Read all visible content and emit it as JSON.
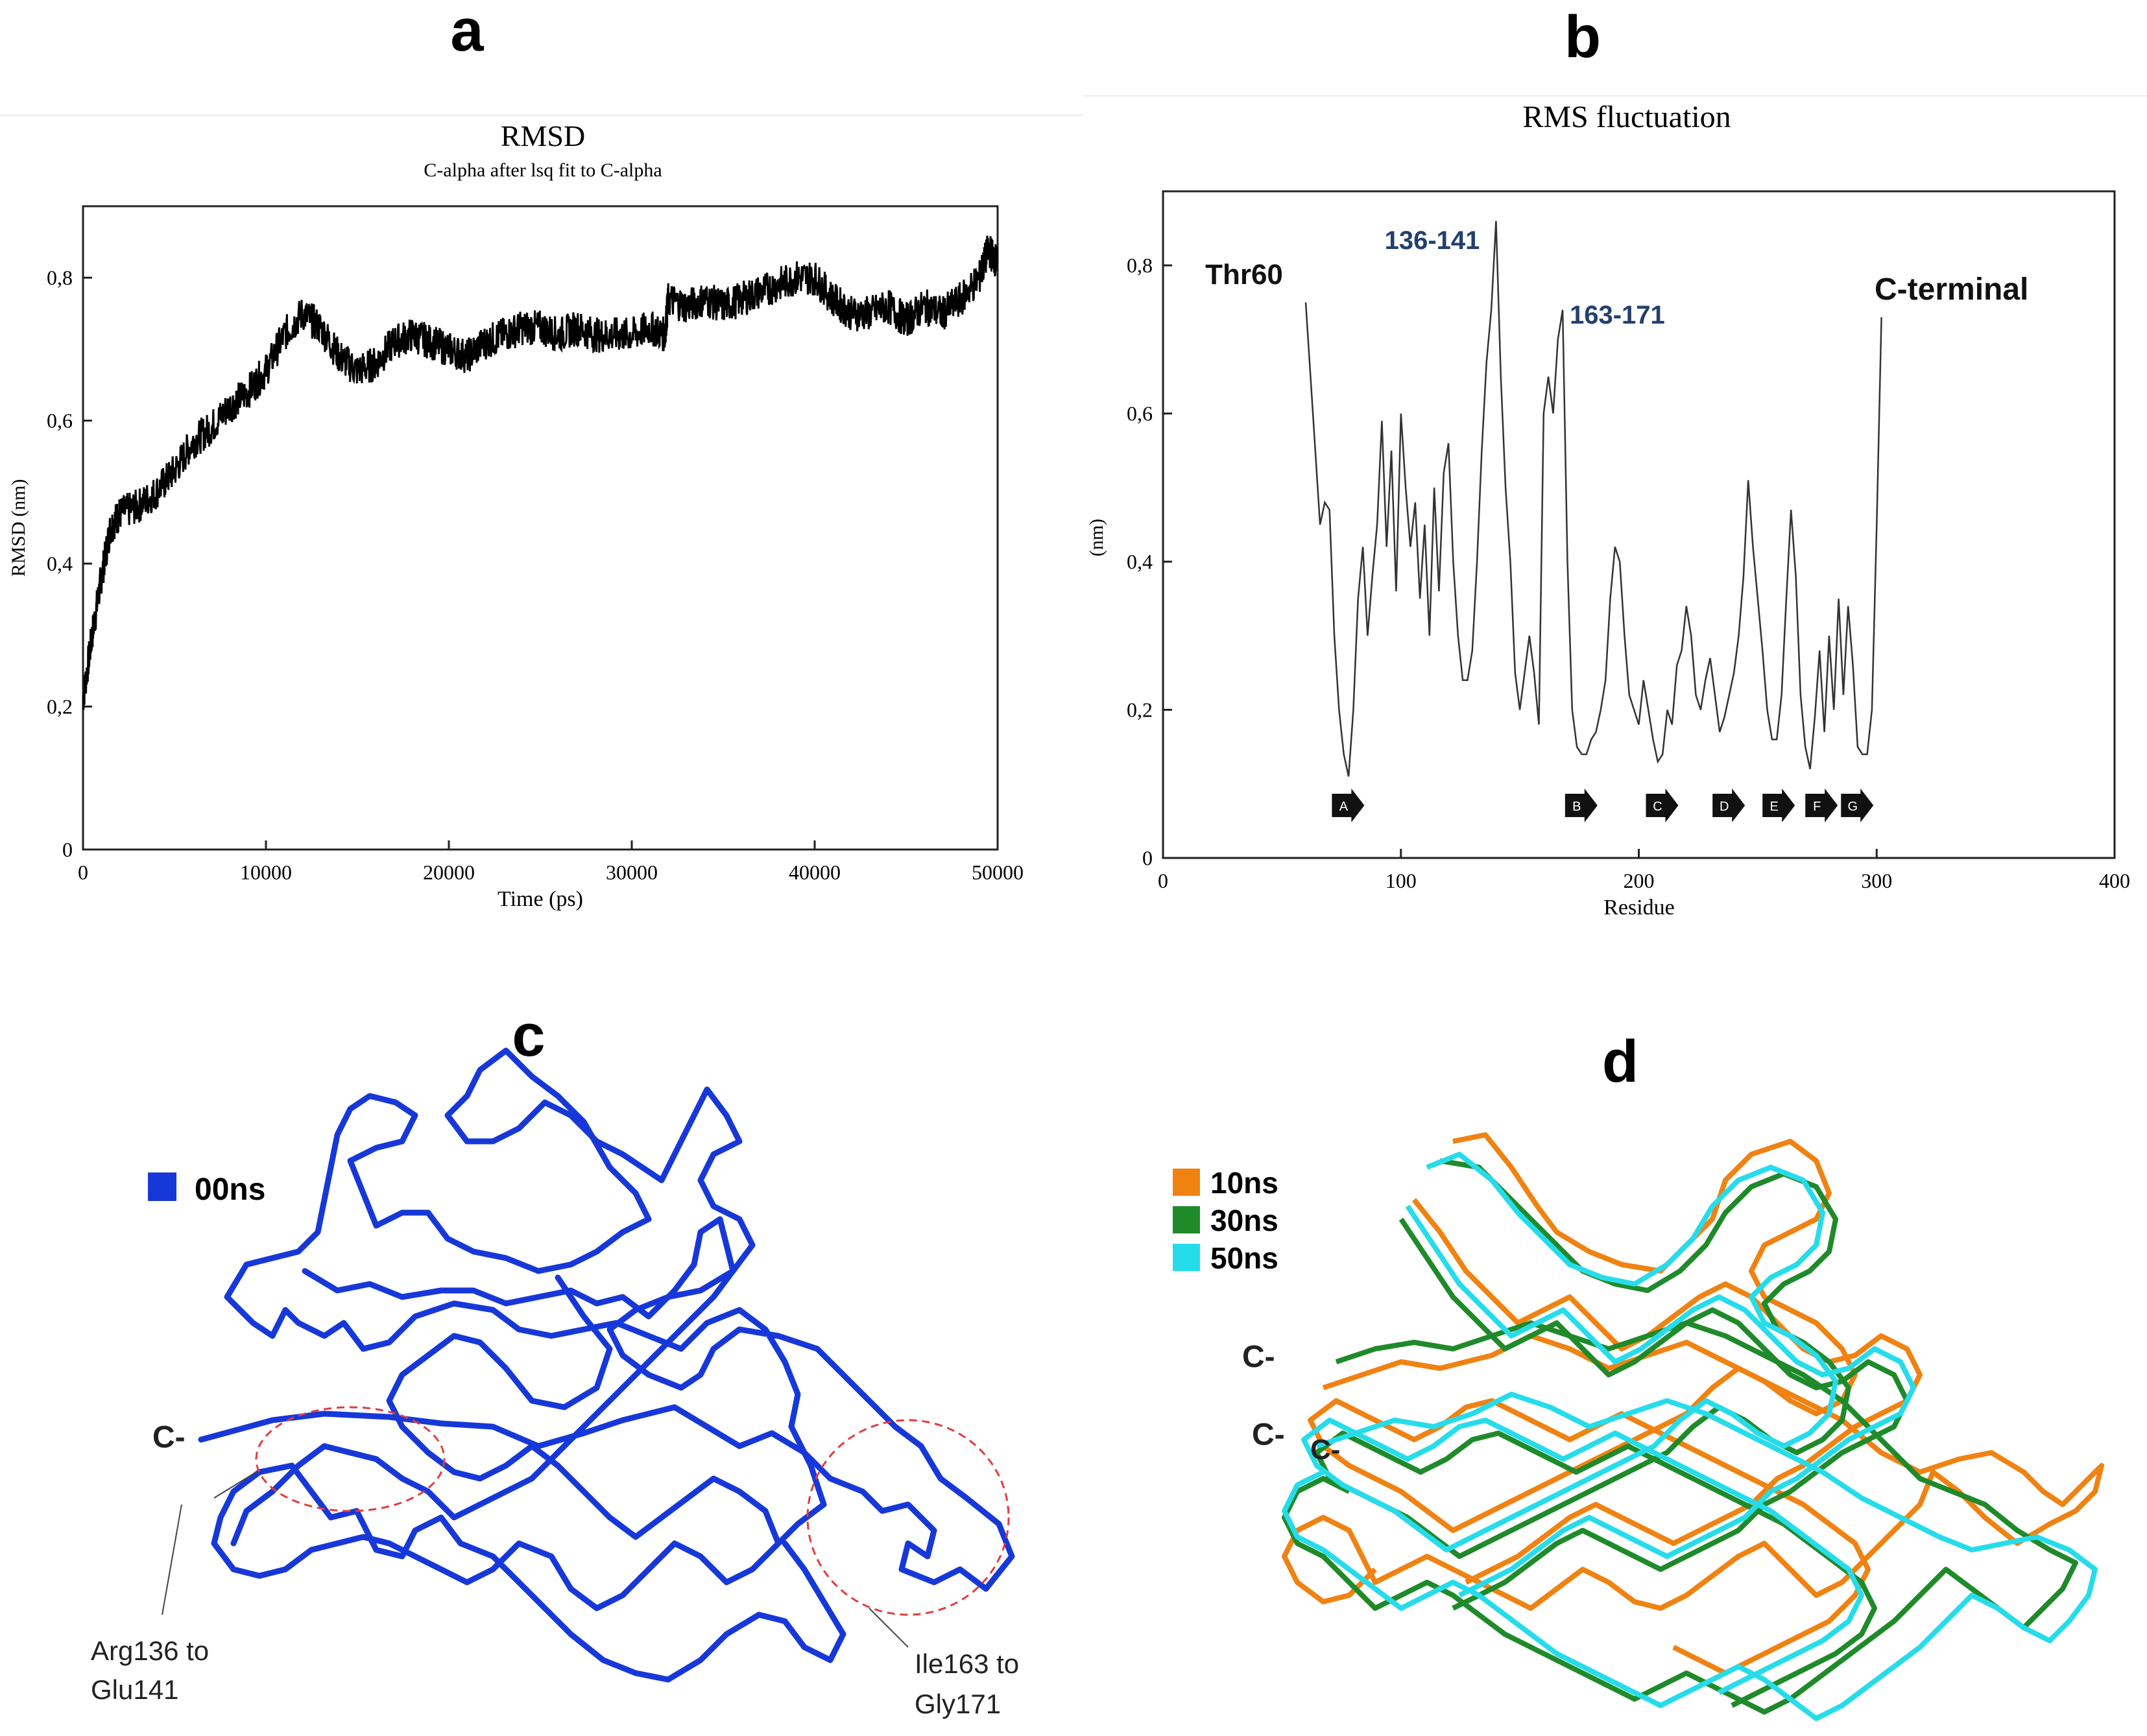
{
  "panels": {
    "a": "a",
    "b": "b",
    "c": "c",
    "d": "d"
  },
  "chart_data": [
    {
      "id": "a",
      "type": "line",
      "title": "RMSD",
      "subtitle": "C-alpha after lsq fit to C-alpha",
      "xlabel": "Time (ps)",
      "ylabel": "RMSD (nm)",
      "xlim": [
        0,
        50000
      ],
      "ylim": [
        0,
        0.9
      ],
      "xticks": [
        0,
        10000,
        20000,
        30000,
        40000,
        50000
      ],
      "xtick_labels": [
        "0",
        "10000",
        "20000",
        "30000",
        "40000",
        "50000"
      ],
      "yticks": [
        0,
        0.2,
        0.4,
        0.6,
        0.8
      ],
      "ytick_labels": [
        "0",
        "0,2",
        "0,4",
        "0,6",
        "0,8"
      ],
      "series": [
        {
          "name": "RMSD",
          "color": "#000000",
          "x": [
            0,
            500,
            1000,
            1500,
            2000,
            3000,
            4000,
            5000,
            6000,
            7000,
            8000,
            9000,
            10000,
            11000,
            12000,
            13000,
            14000,
            15000,
            16000,
            17000,
            18000,
            19000,
            20000,
            21000,
            22000,
            23000,
            24000,
            25000,
            26000,
            27000,
            28000,
            29000,
            30000,
            31000,
            31800,
            32000,
            33000,
            34000,
            35000,
            36000,
            37000,
            38000,
            39000,
            40000,
            41000,
            42000,
            43000,
            44000,
            45000,
            46000,
            47000,
            48000,
            49000,
            49500,
            50000
          ],
          "values": [
            0.21,
            0.3,
            0.38,
            0.45,
            0.47,
            0.48,
            0.5,
            0.53,
            0.57,
            0.59,
            0.62,
            0.64,
            0.67,
            0.72,
            0.75,
            0.73,
            0.69,
            0.67,
            0.68,
            0.71,
            0.72,
            0.71,
            0.7,
            0.69,
            0.71,
            0.72,
            0.73,
            0.73,
            0.72,
            0.73,
            0.72,
            0.72,
            0.72,
            0.73,
            0.72,
            0.77,
            0.76,
            0.77,
            0.76,
            0.77,
            0.78,
            0.79,
            0.8,
            0.8,
            0.77,
            0.75,
            0.75,
            0.76,
            0.74,
            0.76,
            0.75,
            0.77,
            0.8,
            0.84,
            0.82
          ]
        }
      ]
    },
    {
      "id": "b",
      "type": "line",
      "title": "RMS fluctuation",
      "xlabel": "Residue",
      "ylabel": "(nm)",
      "xlim": [
        0,
        400
      ],
      "ylim": [
        0,
        0.9
      ],
      "xticks": [
        0,
        100,
        200,
        300,
        400
      ],
      "xtick_labels": [
        "0",
        "100",
        "200",
        "300",
        "400"
      ],
      "yticks": [
        0,
        0.2,
        0.4,
        0.6,
        0.8
      ],
      "ytick_labels": [
        "0",
        "0,2",
        "0,4",
        "0,6",
        "0,8"
      ],
      "series": [
        {
          "name": "RMSF",
          "color": "#333333",
          "x": [
            60,
            63,
            66,
            68,
            70,
            72,
            74,
            76,
            78,
            80,
            82,
            84,
            86,
            88,
            90,
            92,
            94,
            96,
            98,
            100,
            102,
            104,
            106,
            108,
            110,
            112,
            114,
            116,
            118,
            120,
            122,
            124,
            126,
            128,
            130,
            132,
            134,
            136,
            138,
            140,
            142,
            144,
            146,
            148,
            150,
            152,
            154,
            156,
            158,
            160,
            162,
            164,
            166,
            168,
            170,
            172,
            174,
            176,
            178,
            180,
            182,
            184,
            186,
            188,
            190,
            192,
            194,
            196,
            198,
            200,
            202,
            204,
            206,
            208,
            210,
            212,
            214,
            216,
            218,
            220,
            222,
            224,
            226,
            228,
            230,
            232,
            234,
            236,
            238,
            240,
            242,
            244,
            246,
            248,
            250,
            252,
            254,
            256,
            258,
            260,
            262,
            264,
            266,
            268,
            270,
            272,
            274,
            276,
            278,
            280,
            282,
            284,
            286,
            288,
            290,
            292,
            294,
            296,
            298,
            300,
            302
          ],
          "values": [
            0.75,
            0.6,
            0.45,
            0.48,
            0.47,
            0.3,
            0.2,
            0.14,
            0.11,
            0.2,
            0.35,
            0.42,
            0.3,
            0.38,
            0.45,
            0.59,
            0.42,
            0.55,
            0.36,
            0.6,
            0.5,
            0.42,
            0.48,
            0.35,
            0.45,
            0.3,
            0.5,
            0.36,
            0.52,
            0.56,
            0.4,
            0.3,
            0.24,
            0.24,
            0.28,
            0.4,
            0.55,
            0.67,
            0.74,
            0.86,
            0.65,
            0.5,
            0.4,
            0.25,
            0.2,
            0.25,
            0.3,
            0.25,
            0.18,
            0.6,
            0.65,
            0.6,
            0.7,
            0.74,
            0.4,
            0.2,
            0.15,
            0.14,
            0.14,
            0.16,
            0.17,
            0.2,
            0.24,
            0.35,
            0.42,
            0.4,
            0.3,
            0.22,
            0.2,
            0.18,
            0.24,
            0.2,
            0.16,
            0.13,
            0.14,
            0.2,
            0.18,
            0.26,
            0.28,
            0.34,
            0.3,
            0.22,
            0.2,
            0.24,
            0.27,
            0.22,
            0.17,
            0.19,
            0.22,
            0.25,
            0.3,
            0.38,
            0.51,
            0.42,
            0.35,
            0.28,
            0.2,
            0.16,
            0.16,
            0.22,
            0.35,
            0.47,
            0.38,
            0.22,
            0.15,
            0.12,
            0.19,
            0.28,
            0.17,
            0.3,
            0.2,
            0.35,
            0.22,
            0.34,
            0.26,
            0.15,
            0.14,
            0.14,
            0.2,
            0.45,
            0.73
          ]
        }
      ],
      "annotations": [
        "Thr60",
        "136-141",
        "163-171",
        "C-terminal"
      ],
      "strand_markers": [
        "A",
        "B",
        "C",
        "D",
        "E",
        "F",
        "G"
      ],
      "strand_marker_x": [
        77,
        175,
        209,
        237,
        258,
        276,
        291
      ]
    }
  ],
  "structures": {
    "c": {
      "legend": [
        {
          "label": "00ns",
          "color": "#1738d9"
        }
      ],
      "terminus": "C-",
      "regions": [
        {
          "label_line1": "Arg136 to",
          "label_line2": "Glu141"
        },
        {
          "label_line1": "Ile163 to",
          "label_line2": "Gly171"
        }
      ],
      "ellipse_color": "#e23c3c"
    },
    "d": {
      "legend": [
        {
          "label": "10ns",
          "color": "#f08212"
        },
        {
          "label": "30ns",
          "color": "#1f8a2a"
        },
        {
          "label": "50ns",
          "color": "#27dcea"
        }
      ],
      "termini": [
        "C-",
        "C-",
        "C-"
      ]
    }
  }
}
